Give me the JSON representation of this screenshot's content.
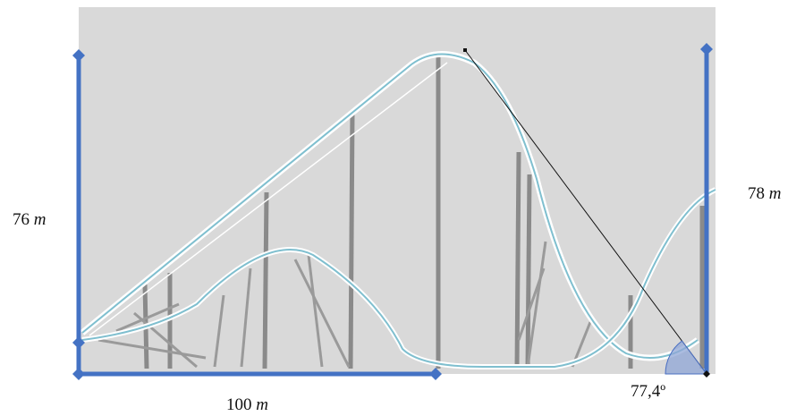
{
  "labels": {
    "left_height": {
      "number": "76",
      "unit": "m"
    },
    "right_height": {
      "number": "78",
      "unit": "m"
    },
    "base_length": {
      "number": "100",
      "unit": "m"
    },
    "angle": "77,4º"
  }
}
